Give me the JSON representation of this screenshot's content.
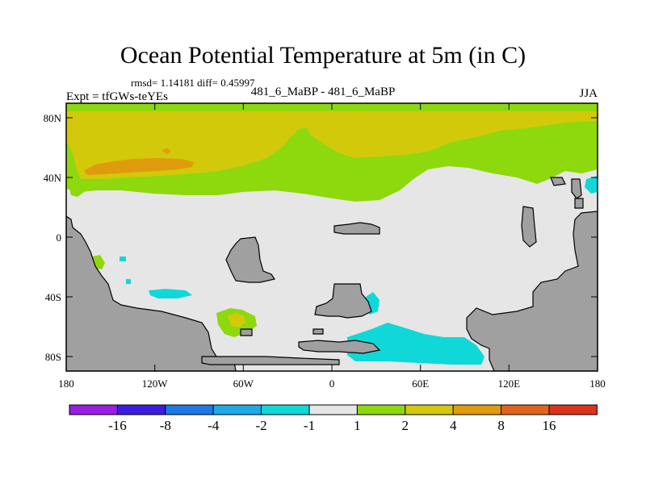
{
  "title": "Ocean Potential Temperature at 5m (in C)",
  "stats": "rmsd= 1.14181 diff= 0.45997",
  "experiment": "Expt = tfGWs-teYEs",
  "comparison": "481_6_MaBP - 481_6_MaBP",
  "season": "JJA",
  "map": {
    "lat_labels": [
      "80N",
      "40N",
      "0",
      "40S",
      "80S"
    ],
    "lon_labels": [
      "180",
      "120W",
      "60W",
      "0",
      "60E",
      "120E",
      "180"
    ],
    "colors": {
      "land": "#a0a0a0",
      "ocean_neutral": "#e6e6e6",
      "green": "#8ed80e",
      "yellow": "#d2c90a",
      "orange": "#e09b0c",
      "cyan": "#10d8d8"
    }
  },
  "colorbar": {
    "labels": [
      "-16",
      "-8",
      "-4",
      "-2",
      "-1",
      "1",
      "2",
      "4",
      "8",
      "16"
    ],
    "colors": [
      "#9a1ee6",
      "#3c1ee0",
      "#1e78e6",
      "#1eaae6",
      "#10d8d8",
      "#e6e6e6",
      "#8ed80e",
      "#d2c90a",
      "#e09b0c",
      "#e0641e",
      "#dc321e"
    ]
  }
}
